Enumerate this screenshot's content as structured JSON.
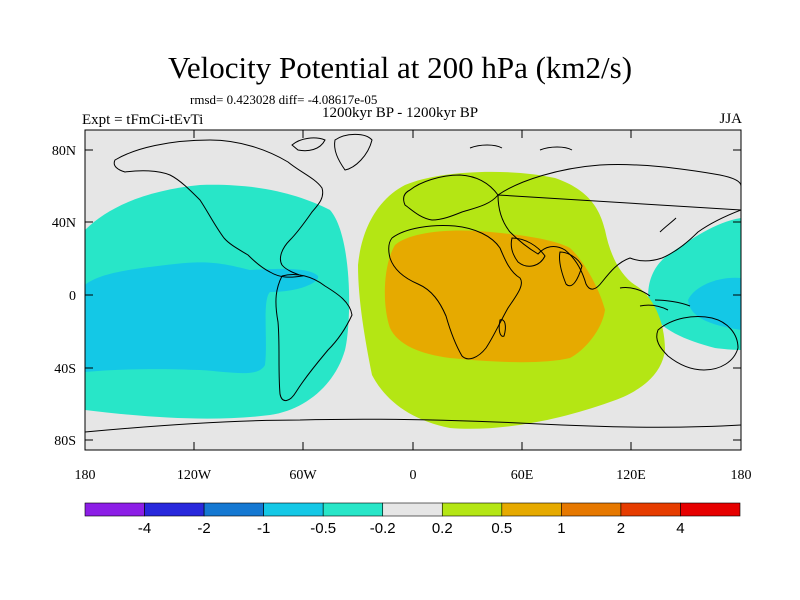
{
  "title": "Velocity Potential at 200 hPa (km2/s)",
  "stats": "rmsd= 0.423028 diff= -4.08617e-05",
  "period": "1200kyr BP - 1200kyr BP",
  "expt": "Expt = tFmCi-tEvTi",
  "season": "JJA",
  "lat_labels": [
    "80N",
    "40N",
    "0",
    "40S",
    "80S"
  ],
  "lon_labels": [
    "180",
    "120W",
    "60W",
    "0",
    "60E",
    "120E",
    "180"
  ],
  "colorbar": {
    "labels": [
      "-4",
      "-2",
      "-1",
      "-0.5",
      "-0.2",
      "0.2",
      "0.5",
      "1",
      "2",
      "4"
    ],
    "colors": [
      "#8c1ee6",
      "#2828dc",
      "#1478d2",
      "#14c8e6",
      "#28e6c8",
      "#e6e6e6",
      "#b4e614",
      "#e6aa00",
      "#e67800",
      "#e63c00",
      "#e60000"
    ]
  },
  "colors": {
    "background": "#e6e6e6",
    "negative_weak": "#28e6c8",
    "negative_mid": "#14c8e6",
    "positive_weak": "#b4e614",
    "positive_mid": "#e6aa00"
  }
}
